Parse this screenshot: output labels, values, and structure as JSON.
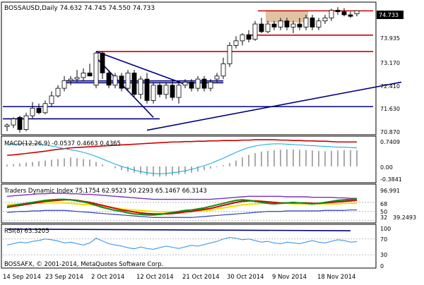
{
  "window": {
    "symbol_line": "BOSSAUSD,Daily  74.632 74.745 74.550 74.733",
    "copyright": "BOSSAFX, © 2001-2014, MetaQuotes Software Corp."
  },
  "panels": {
    "price": {
      "scale_labels": [
        "73.935",
        "73.170",
        "72.410",
        "71.630",
        "70.870"
      ],
      "current_price": "74.733"
    },
    "macd": {
      "label": "MACD(12,26,9) -0.0537 0.4663 0.4365",
      "scale_labels": [
        "0.7409",
        "0.00",
        "-0.3841"
      ]
    },
    "tdi": {
      "label": "Traders Dynamic Index 75.1754 62.9523 50.2293 65.1467 66.3143",
      "scale_labels": [
        "96.991",
        "68",
        "50",
        "32",
        "39.2493"
      ]
    },
    "rsi": {
      "label": "RSI(8) 63.3205",
      "scale_labels": [
        "100",
        "70",
        "30",
        "0"
      ]
    }
  },
  "time_axis": {
    "labels": [
      "14 Sep 2014",
      "23 Sep 2014",
      "2 Oct 2014",
      "12 Oct 2014",
      "21 Oct 2014",
      "30 Oct 2014",
      "9 Nov 2014",
      "18 Nov 2014"
    ]
  },
  "chart_data": {
    "type": "candlestick",
    "symbol": "BOSSAUSD",
    "timeframe": "Daily",
    "last_bar": {
      "open": 74.632,
      "high": 74.745,
      "low": 74.55,
      "close": 74.733
    },
    "y_tick_labels": [
      73.935,
      73.17,
      72.41,
      71.63,
      70.87
    ],
    "ylim": [
      70.75,
      74.9
    ],
    "candles": [
      [
        70.95,
        71.05,
        70.8,
        71.0
      ],
      [
        71.0,
        71.25,
        70.9,
        71.2
      ],
      [
        71.25,
        71.3,
        70.75,
        70.85
      ],
      [
        70.85,
        71.4,
        70.8,
        71.3
      ],
      [
        71.3,
        71.75,
        71.2,
        71.55
      ],
      [
        71.55,
        71.7,
        71.35,
        71.4
      ],
      [
        71.4,
        71.8,
        71.35,
        71.7
      ],
      [
        71.7,
        72.1,
        71.6,
        71.95
      ],
      [
        71.95,
        72.3,
        71.9,
        72.2
      ],
      [
        72.2,
        72.6,
        72.1,
        72.45
      ],
      [
        72.45,
        72.6,
        72.3,
        72.5
      ],
      [
        72.5,
        72.8,
        72.4,
        72.55
      ],
      [
        72.55,
        72.85,
        72.45,
        72.7
      ],
      [
        72.7,
        73.0,
        72.6,
        72.6
      ],
      [
        72.3,
        73.4,
        72.2,
        73.35
      ],
      [
        73.35,
        73.4,
        72.5,
        72.7
      ],
      [
        72.7,
        72.8,
        72.2,
        72.3
      ],
      [
        72.3,
        72.7,
        72.2,
        72.6
      ],
      [
        72.6,
        72.7,
        72.1,
        72.2
      ],
      [
        72.2,
        72.8,
        72.1,
        72.7
      ],
      [
        72.7,
        72.8,
        71.9,
        72.0
      ],
      [
        72.0,
        72.6,
        71.85,
        72.5
      ],
      [
        72.5,
        72.7,
        71.7,
        71.8
      ],
      [
        71.8,
        72.4,
        71.7,
        72.3
      ],
      [
        72.3,
        72.4,
        71.9,
        72.0
      ],
      [
        72.0,
        72.4,
        71.85,
        72.3
      ],
      [
        72.3,
        72.5,
        71.8,
        71.9
      ],
      [
        71.9,
        72.4,
        71.7,
        72.3
      ],
      [
        72.3,
        72.5,
        72.2,
        72.4
      ],
      [
        72.4,
        72.5,
        72.1,
        72.2
      ],
      [
        72.2,
        72.6,
        72.1,
        72.5
      ],
      [
        72.5,
        72.6,
        72.1,
        72.2
      ],
      [
        72.2,
        72.5,
        72.1,
        72.4
      ],
      [
        72.5,
        72.7,
        72.4,
        72.6
      ],
      [
        72.6,
        73.2,
        72.5,
        73.0
      ],
      [
        73.0,
        73.7,
        72.9,
        73.6
      ],
      [
        73.6,
        73.9,
        73.5,
        73.75
      ],
      [
        73.75,
        74.0,
        73.6,
        73.95
      ],
      [
        73.95,
        74.1,
        73.7,
        73.8
      ],
      [
        73.8,
        74.4,
        73.75,
        74.3
      ],
      [
        74.3,
        74.5,
        74.0,
        74.05
      ],
      [
        74.05,
        74.4,
        74.0,
        74.3
      ],
      [
        74.3,
        74.4,
        74.1,
        74.2
      ],
      [
        74.2,
        74.5,
        74.1,
        74.4
      ],
      [
        74.4,
        74.5,
        74.1,
        74.2
      ],
      [
        74.2,
        74.4,
        74.0,
        74.3
      ],
      [
        74.3,
        74.5,
        74.1,
        74.2
      ],
      [
        74.2,
        74.6,
        74.1,
        74.5
      ],
      [
        74.5,
        74.6,
        74.1,
        74.2
      ],
      [
        74.2,
        74.5,
        74.1,
        74.4
      ],
      [
        74.4,
        74.6,
        74.3,
        74.5
      ],
      [
        74.5,
        74.8,
        74.4,
        74.75
      ],
      [
        74.75,
        74.85,
        74.6,
        74.7
      ],
      [
        74.7,
        74.82,
        74.55,
        74.6
      ],
      [
        74.6,
        74.7,
        74.5,
        74.55
      ],
      [
        74.632,
        74.745,
        74.55,
        74.733
      ]
    ],
    "horizontal_levels": [
      {
        "value": 74.73,
        "color": "#cc0000"
      },
      {
        "value": 73.935,
        "color": "#cc0000"
      },
      {
        "value": 73.4,
        "color": "#cc0000"
      },
      {
        "value": 72.44,
        "color": "#000080"
      },
      {
        "value": 72.38,
        "color": "#000080"
      },
      {
        "value": 71.6,
        "color": "#000080"
      },
      {
        "value": 71.2,
        "color": "#000080"
      }
    ],
    "trendlines": [
      {
        "from": [
          14,
          73.4
        ],
        "to": [
          28,
          72.33
        ],
        "color": "#000080"
      },
      {
        "from": [
          14,
          73.2
        ],
        "to": [
          23,
          71.25
        ],
        "color": "#000080"
      },
      {
        "from": [
          22,
          70.83
        ],
        "to": [
          62,
          72.4
        ],
        "color": "#000080"
      }
    ],
    "shaded_zone": {
      "from_bar": 41,
      "to_bar": 47,
      "low": 74.35,
      "high": 74.72,
      "color": "#d9b38c"
    },
    "macd": {
      "range": [
        -0.3841,
        0.7409
      ],
      "histogram": [
        0.05,
        0.06,
        0.08,
        0.1,
        0.12,
        0.14,
        0.16,
        0.18,
        0.2,
        0.22,
        0.24,
        0.22,
        0.2,
        0.18,
        0.12,
        0.05,
        0.0,
        -0.05,
        -0.1,
        -0.14,
        -0.17,
        -0.2,
        -0.24,
        -0.27,
        -0.28,
        -0.26,
        -0.24,
        -0.22,
        -0.2,
        -0.17,
        -0.14,
        -0.1,
        -0.06,
        -0.02,
        0.03,
        0.09,
        0.16,
        0.24,
        0.31,
        0.36,
        0.4,
        0.42,
        0.44,
        0.45,
        0.46,
        0.46,
        0.45,
        0.44,
        0.43,
        0.42,
        0.41,
        0.42,
        0.43,
        0.44,
        0.44,
        0.4365
      ],
      "signal": [
        0.3,
        0.31,
        0.33,
        0.35,
        0.37,
        0.39,
        0.41,
        0.44,
        0.46,
        0.48,
        0.5,
        0.51,
        0.52,
        0.53,
        0.54,
        0.55,
        0.56,
        0.57,
        0.58,
        0.59,
        0.6,
        0.61,
        0.62,
        0.63,
        0.64,
        0.65,
        0.66,
        0.66,
        0.67,
        0.67,
        0.68,
        0.68,
        0.69,
        0.69,
        0.7,
        0.7,
        0.7,
        0.71,
        0.71,
        0.72,
        0.72,
        0.72,
        0.72,
        0.71,
        0.71,
        0.7,
        0.7,
        0.69,
        0.69,
        0.68,
        0.68,
        0.67,
        0.66,
        0.66,
        0.66,
        0.66
      ],
      "trend_line": [
        0.58,
        0.6,
        0.61,
        0.62,
        0.62,
        0.61,
        0.58,
        0.55,
        0.52,
        0.48,
        0.45,
        0.42,
        0.38,
        0.33,
        0.27,
        0.2,
        0.13,
        0.06,
        0.0,
        -0.05,
        -0.1,
        -0.14,
        -0.17,
        -0.19,
        -0.2,
        -0.19,
        -0.17,
        -0.15,
        -0.12,
        -0.08,
        -0.03,
        0.02,
        0.08,
        0.15,
        0.22,
        0.3,
        0.38,
        0.45,
        0.51,
        0.55,
        0.58,
        0.6,
        0.61,
        0.61,
        0.6,
        0.59,
        0.58,
        0.57,
        0.56,
        0.55,
        0.54,
        0.53,
        0.52,
        0.52,
        0.51,
        0.5
      ]
    },
    "tdi": {
      "range": [
        30,
        100
      ],
      "levels": [
        68,
        50,
        32
      ],
      "volatility_upper": [
        80,
        81,
        82,
        83,
        84,
        85,
        85,
        86,
        86,
        86,
        85,
        85,
        84,
        84,
        83,
        82,
        81,
        80,
        79,
        78,
        77,
        76,
        75,
        74,
        74,
        74,
        74,
        74,
        74,
        74,
        74,
        74,
        74,
        75,
        76,
        77,
        78,
        79,
        80,
        80,
        80,
        80,
        80,
        80,
        79,
        79,
        79,
        79,
        78,
        78,
        78,
        78,
        77,
        77,
        76,
        76
      ],
      "market_base": [
        64,
        64,
        65,
        65,
        66,
        66,
        67,
        67,
        67,
        67,
        66,
        65,
        64,
        63,
        62,
        61,
        59,
        57,
        55,
        54,
        53,
        52,
        51,
        50,
        49,
        49,
        49,
        49,
        50,
        50,
        51,
        52,
        53,
        55,
        57,
        59,
        61,
        63,
        64,
        65,
        66,
        66,
        66,
        66,
        66,
        65,
        65,
        65,
        65,
        65,
        65,
        65,
        65,
        66,
        66,
        66
      ],
      "rsi_price_line": [
        60,
        62,
        64,
        66,
        68,
        70,
        72,
        73,
        74,
        74,
        73,
        71,
        69,
        66,
        62,
        58,
        55,
        52,
        50,
        47,
        45,
        44,
        43,
        43,
        44,
        46,
        48,
        50,
        52,
        53,
        55,
        57,
        60,
        63,
        66,
        69,
        72,
        73,
        72,
        70,
        68,
        66,
        65,
        66,
        67,
        68,
        67,
        66,
        65,
        66,
        68,
        70,
        72,
        73,
        74,
        75
      ],
      "trade_signal_line": [
        58,
        60,
        62,
        64,
        66,
        68,
        70,
        71,
        72,
        73,
        73,
        72,
        70,
        68,
        65,
        62,
        59,
        56,
        53,
        51,
        49,
        47,
        46,
        45,
        45,
        45,
        46,
        47,
        49,
        50,
        52,
        54,
        56,
        59,
        62,
        65,
        68,
        70,
        71,
        71,
        70,
        69,
        68,
        67,
        67,
        67,
        67,
        67,
        66,
        66,
        67,
        68,
        69,
        70,
        71,
        72
      ],
      "lower_band": [
        48,
        49,
        50,
        50,
        51,
        51,
        52,
        52,
        52,
        52,
        51,
        50,
        49,
        48,
        47,
        46,
        45,
        44,
        43,
        42,
        41,
        40,
        39,
        38,
        38,
        38,
        38,
        38,
        38,
        38,
        39,
        40,
        41,
        42,
        43,
        44,
        45,
        46,
        47,
        48,
        49,
        50,
        50,
        50,
        51,
        51,
        51,
        51,
        51,
        51,
        52,
        52,
        52,
        52,
        53,
        53
      ]
    },
    "rsi": {
      "range": [
        0,
        100
      ],
      "levels": [
        70,
        30
      ],
      "values": [
        55,
        58,
        62,
        60,
        64,
        66,
        70,
        68,
        65,
        60,
        62,
        58,
        55,
        60,
        72,
        65,
        58,
        55,
        52,
        48,
        45,
        50,
        46,
        44,
        48,
        52,
        49,
        46,
        50,
        54,
        52,
        56,
        60,
        64,
        70,
        74,
        72,
        68,
        70,
        66,
        62,
        64,
        60,
        58,
        62,
        60,
        58,
        62,
        66,
        62,
        60,
        64,
        68,
        66,
        62,
        63.32
      ],
      "trend_line": [
        {
          "from": [
            0,
            95
          ],
          "to": [
            54,
            91
          ]
        }
      ]
    }
  }
}
